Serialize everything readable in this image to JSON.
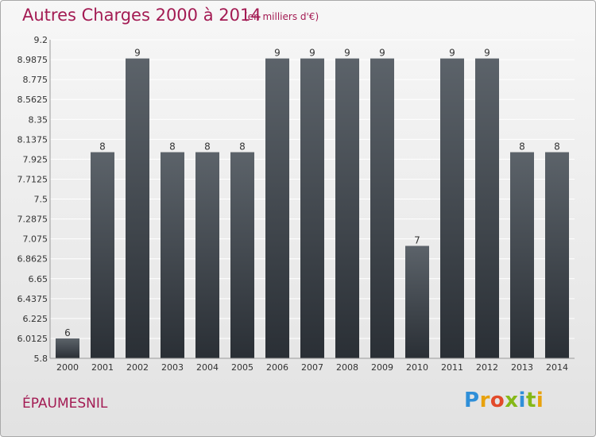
{
  "header": {
    "title": "Autres Charges 2000 à 2014",
    "unit": "(en milliers d'€)"
  },
  "footer": {
    "city": "ÉPAUMESNIL",
    "logo": "Proxiti"
  },
  "chart_data": {
    "type": "bar",
    "title": "Autres Charges 2000 à 2014",
    "subtitle": "(en milliers d'€)",
    "categories": [
      "2000",
      "2001",
      "2002",
      "2003",
      "2004",
      "2005",
      "2006",
      "2007",
      "2008",
      "2009",
      "2010",
      "2011",
      "2012",
      "2013",
      "2014"
    ],
    "values": [
      6,
      8,
      9,
      8,
      8,
      8,
      9,
      9,
      9,
      9,
      7,
      9,
      9,
      8,
      8
    ],
    "data_labels": [
      "6",
      "8",
      "9",
      "8",
      "8",
      "8",
      "9",
      "9",
      "9",
      "9",
      "7",
      "9",
      "9",
      "8",
      "8"
    ],
    "bar_tops": [
      6.0125,
      8,
      9,
      8,
      8,
      8,
      9,
      9,
      9,
      9,
      7,
      9,
      9,
      8,
      8
    ],
    "yticks": [
      "9.2",
      "8.9875",
      "8.775",
      "8.5625",
      "8.35",
      "8.1375",
      "7.925",
      "7.7125",
      "7.5",
      "7.2875",
      "7.075",
      "6.8625",
      "6.65",
      "6.4375",
      "6.225",
      "6.0125",
      "5.8"
    ],
    "ylim": [
      5.8,
      9.2
    ],
    "grid": true,
    "legend": false,
    "colors": {
      "bar_top": "#5c636a",
      "bar_bottom": "#2a2f35",
      "grid": "#ffffff",
      "title": "#a31b53"
    }
  }
}
